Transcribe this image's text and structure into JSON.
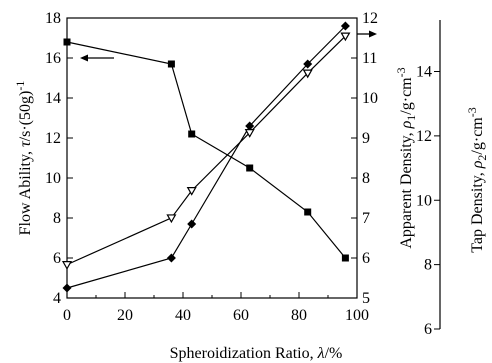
{
  "chart_data": {
    "type": "line",
    "x_axis": {
      "label_text": "Spheroidization Ratio, ",
      "label_symbol": "λ",
      "label_unit": "/%",
      "range": [
        0,
        100
      ],
      "ticks": [
        0,
        20,
        40,
        60,
        80,
        100
      ]
    },
    "y_left": {
      "label_text": "Flow Ability, ",
      "label_symbol": "τ",
      "label_unit": "/s·(50g)",
      "label_sup": "-1",
      "range": [
        4,
        18
      ],
      "ticks": [
        4,
        6,
        8,
        10,
        12,
        14,
        16,
        18
      ]
    },
    "y_right1": {
      "label_text": "Apparent Density, ",
      "label_symbol": "ρ",
      "label_sub": "1",
      "label_unit": "/g·cm",
      "label_sup": "-3",
      "range": [
        5,
        12
      ],
      "ticks": [
        5,
        6,
        7,
        8,
        9,
        10,
        11,
        12
      ]
    },
    "y_right2": {
      "label_text": "Tap Density, ",
      "label_symbol": "ρ",
      "label_sub": "2",
      "label_unit": "/g·cm",
      "label_sup": "-3",
      "range": [
        6,
        15.6
      ],
      "ticks": [
        6,
        8,
        10,
        12,
        14
      ]
    },
    "series": [
      {
        "axis": "left",
        "marker": "square",
        "color": "#000000",
        "x": [
          0,
          36,
          43,
          63,
          83,
          96
        ],
        "y": [
          16.8,
          15.7,
          12.2,
          10.5,
          8.3,
          6.0
        ]
      },
      {
        "axis": "right1",
        "marker": "diamond",
        "color": "#000000",
        "x": [
          0,
          36,
          43,
          63,
          83,
          96
        ],
        "y": [
          5.25,
          6.0,
          6.85,
          9.3,
          10.85,
          11.8
        ]
      },
      {
        "axis": "right2",
        "marker": "triangle-down",
        "color": "#000000",
        "x": [
          0,
          36,
          43,
          63,
          83,
          96
        ],
        "y": [
          8.0,
          9.45,
          10.3,
          12.1,
          13.95,
          15.1
        ]
      }
    ],
    "annotations": [
      {
        "type": "arrow",
        "direction": "left",
        "target_axis": "left",
        "description": "flow ability uses left axis"
      },
      {
        "type": "arrow",
        "direction": "right",
        "target_axis": "right",
        "description": "densities use right axes"
      }
    ],
    "grid": false,
    "legend": "none"
  }
}
